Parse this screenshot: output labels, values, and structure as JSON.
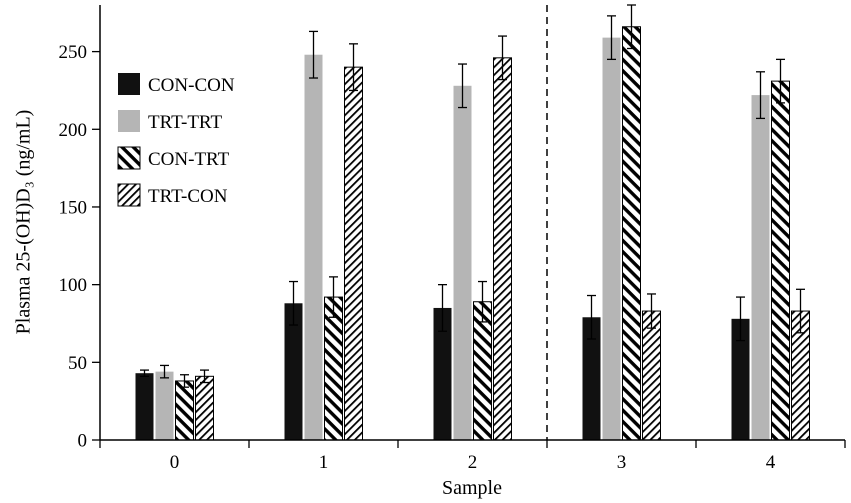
{
  "figure": {
    "background": "#ffffff"
  },
  "chart_data": {
    "type": "bar",
    "title": "",
    "xlabel": "Sample",
    "ylabel": "Plasma 25-(OH)D₃ (ng/mL)",
    "categories": [
      "0",
      "1",
      "2",
      "3",
      "4"
    ],
    "yticks": [
      0,
      50,
      100,
      150,
      200,
      250
    ],
    "ylim": [
      0,
      280
    ],
    "grid": false,
    "legend_position": "upper-left-inside",
    "error_bars": "symmetric-with-caps",
    "divider": {
      "style": "dashed-vertical-line",
      "between_categories": [
        "2",
        "3"
      ]
    },
    "series": [
      {
        "name": "CON-CON",
        "style": "solid-black",
        "color": "#111111",
        "values": [
          43,
          88,
          85,
          79,
          78
        ],
        "errors": [
          2,
          14,
          15,
          14,
          14
        ]
      },
      {
        "name": "TRT-TRT",
        "style": "solid-gray",
        "color": "#b5b5b5",
        "values": [
          44,
          248,
          228,
          259,
          222
        ],
        "errors": [
          4,
          15,
          14,
          14,
          15
        ]
      },
      {
        "name": "CON-TRT",
        "style": "hatch-bold-backslash",
        "color": "#000000",
        "values": [
          38,
          92,
          89,
          266,
          231
        ],
        "errors": [
          4,
          13,
          13,
          14,
          14
        ]
      },
      {
        "name": "TRT-CON",
        "style": "hatch-fine-slash",
        "color": "#000000",
        "values": [
          41,
          240,
          246,
          83,
          83
        ],
        "errors": [
          4,
          15,
          14,
          11,
          14
        ]
      }
    ]
  }
}
